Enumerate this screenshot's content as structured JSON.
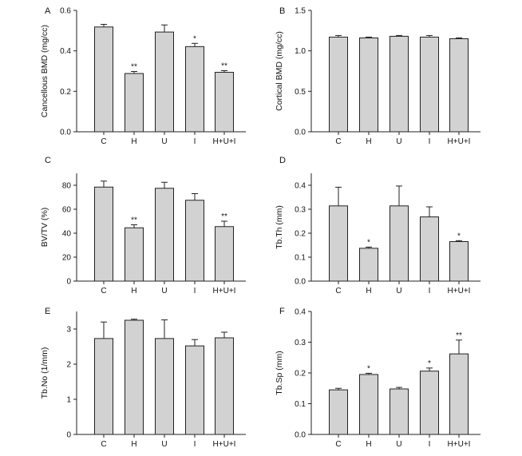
{
  "chart_data": [
    {
      "panel": "A",
      "type": "bar",
      "categories": [
        "C",
        "H",
        "U",
        "I",
        "H+U+I"
      ],
      "values": [
        0.518,
        0.288,
        0.493,
        0.421,
        0.294
      ],
      "errors": [
        0.013,
        0.01,
        0.035,
        0.016,
        0.008
      ],
      "significance": [
        "",
        "**",
        "",
        "*",
        "**"
      ],
      "ylabel": "Cancellous BMD (mg/cc)",
      "ylim": [
        0,
        0.6
      ],
      "yticks": [
        0.0,
        0.2,
        0.4,
        0.6
      ],
      "ytick_labels": [
        "0.0",
        "0.2",
        "0.4",
        "0.6"
      ]
    },
    {
      "panel": "B",
      "type": "bar",
      "categories": [
        "C",
        "H",
        "U",
        "I",
        "H+U+I"
      ],
      "values": [
        1.17,
        1.16,
        1.18,
        1.17,
        1.15
      ],
      "errors": [
        0.02,
        0.01,
        0.01,
        0.02,
        0.01
      ],
      "significance": [
        "",
        "",
        "",
        "",
        ""
      ],
      "ylabel": "Cortical BMD (mg/cc)",
      "ylim": [
        0,
        1.5
      ],
      "yticks": [
        0.0,
        0.5,
        1.0,
        1.5
      ],
      "ytick_labels": [
        "0.0",
        "0.5",
        "1.0",
        "1.5"
      ]
    },
    {
      "panel": "C",
      "type": "bar",
      "categories": [
        "C",
        "H",
        "U",
        "I",
        "H+U+I"
      ],
      "values": [
        78.5,
        44.5,
        77.5,
        67.5,
        45.5
      ],
      "errors": [
        5.0,
        2.5,
        5.0,
        5.5,
        4.5
      ],
      "significance": [
        "",
        "**",
        "",
        "",
        "**"
      ],
      "ylabel": "BV/TV (%)",
      "ylim": [
        0,
        90
      ],
      "yticks": [
        0,
        20,
        40,
        60,
        80
      ],
      "ytick_labels": [
        "0",
        "20",
        "40",
        "60",
        "80"
      ]
    },
    {
      "panel": "D",
      "type": "bar",
      "categories": [
        "C",
        "H",
        "U",
        "I",
        "H+U+I"
      ],
      "values": [
        0.314,
        0.137,
        0.314,
        0.268,
        0.165
      ],
      "errors": [
        0.078,
        0.005,
        0.083,
        0.042,
        0.004
      ],
      "significance": [
        "",
        "*",
        "",
        "",
        "*"
      ],
      "ylabel": "Tb.Th (mm)",
      "ylim": [
        0,
        0.45
      ],
      "yticks": [
        0.0,
        0.1,
        0.2,
        0.3,
        0.4
      ],
      "ytick_labels": [
        "0.0",
        "0.1",
        "0.2",
        "0.3",
        "0.4"
      ]
    },
    {
      "panel": "E",
      "type": "bar",
      "categories": [
        "C",
        "H",
        "U",
        "I",
        "H+U+I"
      ],
      "values": [
        2.73,
        3.25,
        2.73,
        2.52,
        2.75
      ],
      "errors": [
        0.47,
        0.03,
        0.53,
        0.18,
        0.16
      ],
      "significance": [
        "",
        "",
        "",
        "",
        ""
      ],
      "ylabel": "Tb.No (1/mm)",
      "ylim": [
        0,
        3.5
      ],
      "yticks": [
        0,
        1,
        2,
        3
      ],
      "ytick_labels": [
        "0",
        "1",
        "2",
        "3"
      ]
    },
    {
      "panel": "F",
      "type": "bar",
      "categories": [
        "C",
        "H",
        "U",
        "I",
        "H+U+I"
      ],
      "values": [
        0.145,
        0.195,
        0.148,
        0.206,
        0.262
      ],
      "errors": [
        0.005,
        0.004,
        0.005,
        0.01,
        0.045
      ],
      "significance": [
        "",
        "*",
        "",
        "*",
        "**"
      ],
      "ylabel": "Tb.Sp (mm)",
      "ylim": [
        0,
        0.4
      ],
      "yticks": [
        0.0,
        0.1,
        0.2,
        0.3,
        0.4
      ],
      "ytick_labels": [
        "0.0",
        "0.1",
        "0.2",
        "0.3",
        "0.4"
      ]
    }
  ]
}
